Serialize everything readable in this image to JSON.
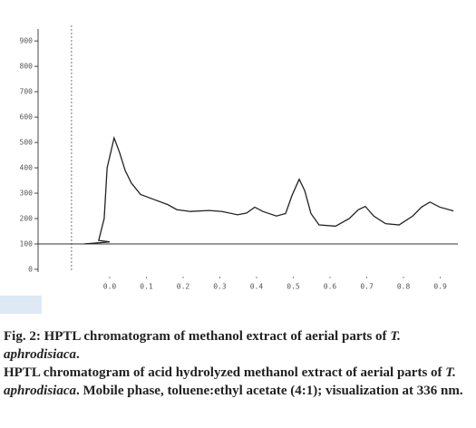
{
  "chart_data": {
    "type": "line",
    "series": [
      {
        "color": "#222222",
        "x": [
          -0.07,
          0.0,
          -0.03,
          -0.015,
          -0.007,
          0.012,
          0.027,
          0.042,
          0.059,
          0.084,
          0.121,
          0.158,
          0.183,
          0.22,
          0.27,
          0.306,
          0.348,
          0.373,
          0.395,
          0.417,
          0.454,
          0.479,
          0.496,
          0.516,
          0.531,
          0.548,
          0.57,
          0.615,
          0.652,
          0.677,
          0.696,
          0.719,
          0.751,
          0.788,
          0.825,
          0.849,
          0.872,
          0.899,
          0.936
        ],
        "values": [
          100,
          108,
          114,
          200,
          400,
          518,
          460,
          390,
          340,
          295,
          275,
          255,
          235,
          228,
          232,
          228,
          215,
          222,
          245,
          228,
          210,
          220,
          290,
          355,
          310,
          220,
          175,
          170,
          200,
          235,
          248,
          210,
          180,
          175,
          210,
          245,
          265,
          245,
          230
        ]
      }
    ],
    "xlim": [
      -0.195,
      0.948
    ],
    "ylim": [
      0,
      940
    ],
    "xticks": [
      {
        "value": 0,
        "label": "0.0"
      },
      0.1,
      0.2,
      0.3,
      0.4,
      0.5,
      0.6,
      0.7,
      0.8,
      0.9
    ],
    "yticks": [
      0,
      100,
      200,
      300,
      400,
      500,
      600,
      700,
      800,
      900
    ],
    "vline": -0.104,
    "hline": 100
  },
  "caption": {
    "title": [
      "Fig. 2: HPTL chromatogram of methanol extract of aerial parts of ",
      "T. aphrodisiaca",
      "."
    ],
    "text": [
      "HPTL chromatogram of acid hydrolyzed methanol extract of aerial parts of ",
      "T. aphrodisiaca",
      ". Mobile phase, toluene:ethyl acetate (4:1); visualization at 336 nm."
    ]
  }
}
